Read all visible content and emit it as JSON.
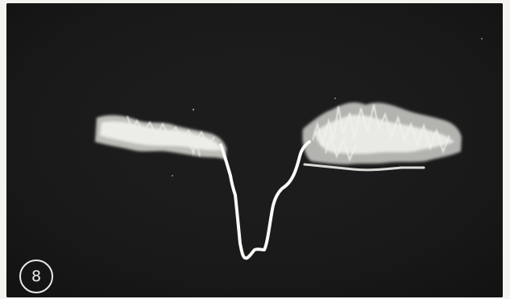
{
  "figure": {
    "label": "8"
  },
  "colors": {
    "screen_background": "#1b1b1b",
    "paper_border": "#f4f3ef",
    "trace": "#f0f0ec"
  }
}
